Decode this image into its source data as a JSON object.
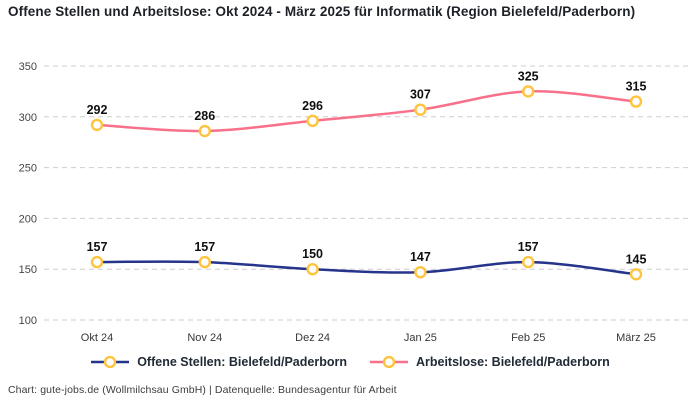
{
  "title": "Offene Stellen und Arbeitslose: Okt 2024 - März 2025 für Informatik (Region Bielefeld/Paderborn)",
  "footer": "Chart: gute-jobs.de (Wollmilchsau GmbH) | Datenquelle: Bundesagentur für Arbeit",
  "chart_data": {
    "type": "line",
    "title": "Offene Stellen und Arbeitslose: Okt 2024 - März 2025 für Informatik (Region Bielefeld/Paderborn)",
    "categories": [
      "Okt 24",
      "Nov 24",
      "Dez 24",
      "Jan 25",
      "Feb 25",
      "März 25"
    ],
    "series": [
      {
        "name": "Offene Stellen: Bielefeld/Paderborn",
        "color": "#26348C",
        "values": [
          157,
          157,
          150,
          147,
          157,
          145
        ]
      },
      {
        "name": "Arbeitslose: Bielefeld/Paderborn",
        "color": "#F8708A",
        "values": [
          292,
          286,
          296,
          307,
          325,
          315
        ]
      }
    ],
    "marker": {
      "fill": "#ffffff",
      "stroke": "#FFC43D"
    },
    "y_ticks": [
      100,
      150,
      200,
      250,
      300,
      350
    ],
    "ylim": [
      100,
      350
    ],
    "xlabel": "",
    "ylabel": "",
    "grid": "horizontal-dashed",
    "legend_position": "bottom",
    "data_labels": true
  }
}
